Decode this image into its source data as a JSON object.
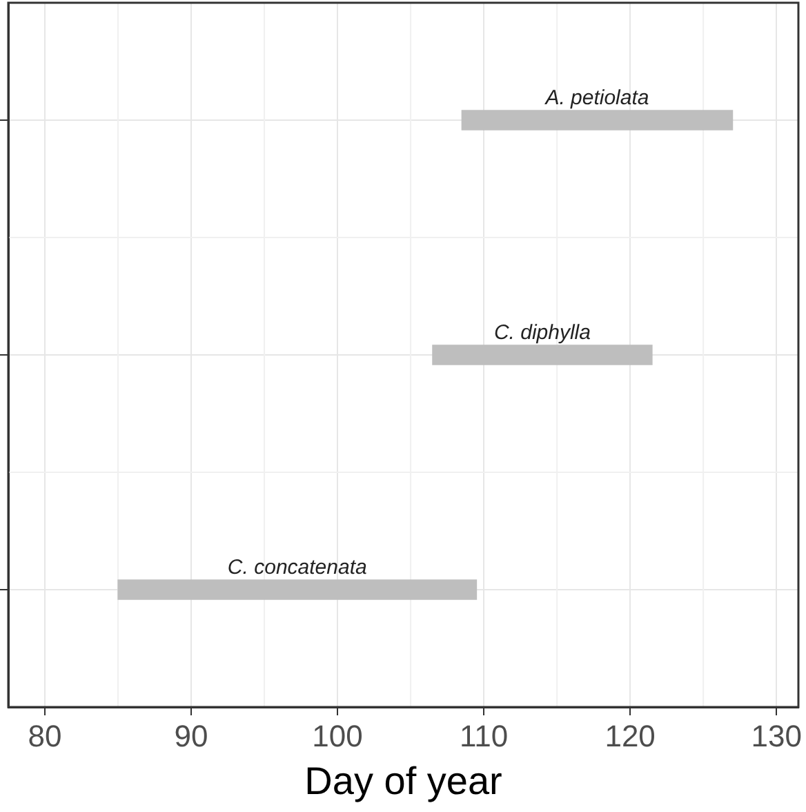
{
  "chart_data": {
    "type": "bar",
    "orientation": "horizontal",
    "categories": [
      "A. petiolata",
      "C. diphylla",
      "C. concatenata"
    ],
    "base": [
      108.5,
      106.5,
      85
    ],
    "values": [
      18.5,
      15,
      24.5
    ],
    "color": "#bebebe",
    "xlim": [
      77.5,
      131.5
    ],
    "xticks": [
      80,
      90,
      100,
      110,
      120,
      130
    ],
    "xlabel": "Day of year",
    "grid": true,
    "tick_labels": "x",
    "legend": false
  }
}
